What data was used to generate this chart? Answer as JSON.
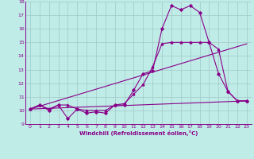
{
  "title": "",
  "xlabel": "Windchill (Refroidissement éolien,°C)",
  "bg_color": "#c0ece8",
  "grid_color": "#a0c8c8",
  "line_color": "#880088",
  "xlim": [
    -0.5,
    23.5
  ],
  "ylim": [
    9,
    18
  ],
  "yticks": [
    9,
    10,
    11,
    12,
    13,
    14,
    15,
    16,
    17,
    18
  ],
  "xticks": [
    0,
    1,
    2,
    3,
    4,
    5,
    6,
    7,
    8,
    9,
    10,
    11,
    12,
    13,
    14,
    15,
    16,
    17,
    18,
    19,
    20,
    21,
    22,
    23
  ],
  "line1_x": [
    0,
    1,
    2,
    3,
    4,
    5,
    6,
    7,
    8,
    9,
    10,
    11,
    12,
    13,
    14,
    15,
    16,
    17,
    18,
    19,
    20,
    21,
    22,
    23
  ],
  "line1_y": [
    10.1,
    10.4,
    10.0,
    10.4,
    9.4,
    10.1,
    9.8,
    9.9,
    9.8,
    10.4,
    10.4,
    11.5,
    12.7,
    12.9,
    16.0,
    17.7,
    17.4,
    17.7,
    17.2,
    15.0,
    12.7,
    11.4,
    10.7,
    10.7
  ],
  "line2_x": [
    0,
    1,
    2,
    3,
    4,
    5,
    6,
    7,
    8,
    9,
    10,
    11,
    12,
    13,
    14,
    15,
    16,
    17,
    18,
    19,
    20,
    21,
    22,
    23
  ],
  "line2_y": [
    10.1,
    10.4,
    10.1,
    10.4,
    10.4,
    10.1,
    10.0,
    10.0,
    10.0,
    10.4,
    10.5,
    11.2,
    11.9,
    13.2,
    14.9,
    15.0,
    15.0,
    15.0,
    15.0,
    15.0,
    14.5,
    11.4,
    10.7,
    10.7
  ],
  "line3_x": [
    0,
    23
  ],
  "line3_y": [
    10.1,
    10.7
  ],
  "line4_x": [
    0,
    23
  ],
  "line4_y": [
    10.1,
    14.9
  ]
}
